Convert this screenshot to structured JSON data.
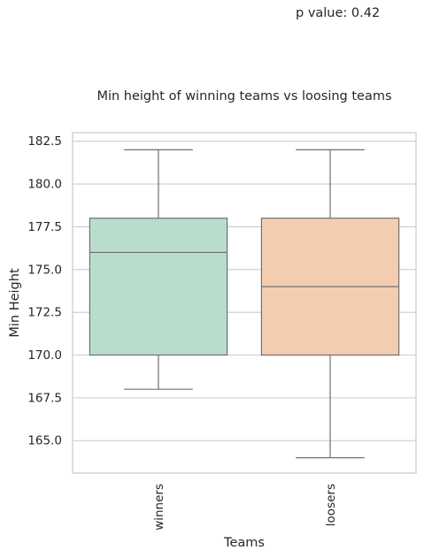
{
  "annotation": "p value: 0.42",
  "colors": {
    "winners": "#b9dccb",
    "loosers": "#f4cdb1",
    "lines": "#707070",
    "grid": "#cccccc",
    "frame": "#cccccc"
  },
  "chart_data": {
    "type": "box",
    "title": "Min height of winning teams vs loosing teams",
    "xlabel": "Teams",
    "ylabel": "Min Height",
    "categories": [
      "winners",
      "loosers"
    ],
    "ylim": [
      163.1,
      183.0
    ],
    "yticks": [
      165.0,
      167.5,
      170.0,
      172.5,
      175.0,
      177.5,
      180.0,
      182.5
    ],
    "ytick_labels": [
      "165.0",
      "167.5",
      "170.0",
      "172.5",
      "175.0",
      "177.5",
      "180.0",
      "182.5"
    ],
    "grid": true,
    "series": [
      {
        "category": "winners",
        "whisker_low": 168,
        "q1": 170,
        "median": 176,
        "q3": 178,
        "whisker_high": 182
      },
      {
        "category": "loosers",
        "whisker_low": 164,
        "q1": 170,
        "median": 174,
        "q3": 178,
        "whisker_high": 182
      }
    ]
  }
}
